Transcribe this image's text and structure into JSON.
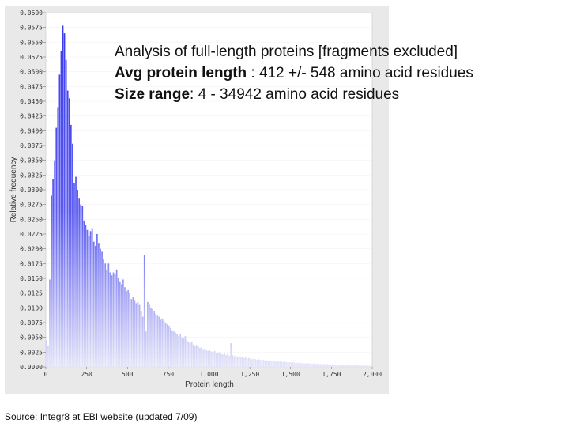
{
  "annotation": {
    "line1": "Analysis of full-length proteins [fragments excluded]",
    "line2_label": "Avg protein length",
    "line2_value": " : 412 +/- 548 amino acid residues",
    "line3_label": "Size range",
    "line3_value": ": 4 - 34942 amino acid residues"
  },
  "source": "Source: Integr8 at EBI website (updated 7/09)",
  "colors": {
    "bar_top": "#3a3af0",
    "bar_bottom": "#e4e4f8",
    "panel_bg": "#e9e9e9",
    "plot_bg": "#ffffff"
  },
  "chart_data": {
    "type": "bar",
    "xlabel": "Protein length",
    "ylabel": "Relative frequency",
    "xlim": [
      0,
      2000
    ],
    "ylim": [
      0,
      0.06
    ],
    "bin_width": 10,
    "x_ticks": [
      {
        "value": 0,
        "label": "0"
      },
      {
        "value": 250,
        "label": "250"
      },
      {
        "value": 500,
        "label": "500"
      },
      {
        "value": 750,
        "label": "750"
      },
      {
        "value": 1000,
        "label": "1,000"
      },
      {
        "value": 1250,
        "label": "1,250"
      },
      {
        "value": 1500,
        "label": "1,500"
      },
      {
        "value": 1750,
        "label": "1,750"
      },
      {
        "value": 2000,
        "label": "2,000"
      }
    ],
    "y_ticks": [
      {
        "value": 0.0,
        "label": "0.0000"
      },
      {
        "value": 0.0025,
        "label": "0.0025"
      },
      {
        "value": 0.005,
        "label": "0.0050"
      },
      {
        "value": 0.0075,
        "label": "0.0075"
      },
      {
        "value": 0.01,
        "label": "0.0100"
      },
      {
        "value": 0.0125,
        "label": "0.0125"
      },
      {
        "value": 0.015,
        "label": "0.0150"
      },
      {
        "value": 0.0175,
        "label": "0.0175"
      },
      {
        "value": 0.02,
        "label": "0.0200"
      },
      {
        "value": 0.0225,
        "label": "0.0225"
      },
      {
        "value": 0.025,
        "label": "0.0250"
      },
      {
        "value": 0.0275,
        "label": "0.0275"
      },
      {
        "value": 0.03,
        "label": "0.0300"
      },
      {
        "value": 0.0325,
        "label": "0.0325"
      },
      {
        "value": 0.035,
        "label": "0.0350"
      },
      {
        "value": 0.0375,
        "label": "0.0375"
      },
      {
        "value": 0.04,
        "label": "0.0400"
      },
      {
        "value": 0.0425,
        "label": "0.0425"
      },
      {
        "value": 0.045,
        "label": "0.0450"
      },
      {
        "value": 0.0475,
        "label": "0.0475"
      },
      {
        "value": 0.05,
        "label": "0.0500"
      },
      {
        "value": 0.0525,
        "label": "0.0525"
      },
      {
        "value": 0.055,
        "label": "0.0550"
      },
      {
        "value": 0.0575,
        "label": "0.0575"
      },
      {
        "value": 0.06,
        "label": "0.0600"
      }
    ],
    "bins_x": [
      0,
      10,
      20,
      30,
      40,
      50,
      60,
      70,
      80,
      90,
      100,
      110,
      120,
      130,
      140,
      150,
      160,
      170,
      180,
      190,
      200,
      210,
      220,
      230,
      240,
      250,
      260,
      270,
      280,
      290,
      300,
      310,
      320,
      330,
      340,
      350,
      360,
      370,
      380,
      390,
      400,
      410,
      420,
      430,
      440,
      450,
      460,
      470,
      480,
      490,
      500,
      510,
      520,
      530,
      540,
      550,
      560,
      570,
      580,
      590,
      600,
      610,
      620,
      630,
      640,
      650,
      660,
      670,
      680,
      690,
      700,
      710,
      720,
      730,
      740,
      750,
      760,
      770,
      780,
      790,
      800,
      810,
      820,
      830,
      840,
      850,
      860,
      870,
      880,
      890,
      900,
      910,
      920,
      930,
      940,
      950,
      960,
      970,
      980,
      990,
      1000,
      1010,
      1020,
      1030,
      1040,
      1050,
      1060,
      1070,
      1080,
      1090,
      1100,
      1110,
      1120,
      1130,
      1140,
      1150,
      1160,
      1170,
      1180,
      1190,
      1200,
      1210,
      1220,
      1230,
      1240,
      1250,
      1260,
      1270,
      1280,
      1290,
      1300,
      1310,
      1320,
      1330,
      1340,
      1350,
      1360,
      1370,
      1380,
      1390,
      1400,
      1410,
      1420,
      1430,
      1440,
      1450,
      1460,
      1470,
      1480,
      1490,
      1500,
      1510,
      1520,
      1530,
      1540,
      1550,
      1560,
      1570,
      1580,
      1590,
      1600,
      1610,
      1620,
      1630,
      1640,
      1650,
      1660,
      1670,
      1680,
      1690,
      1700,
      1710,
      1720,
      1730,
      1740,
      1750,
      1760,
      1770,
      1780,
      1790,
      1800,
      1810,
      1820,
      1830,
      1840,
      1850,
      1860,
      1870,
      1880,
      1890,
      1900,
      1910,
      1920,
      1930,
      1940,
      1950,
      1960,
      1970,
      1980,
      1990
    ],
    "values": [
      0.0045,
      0.0035,
      0.0148,
      0.029,
      0.0318,
      0.035,
      0.0405,
      0.044,
      0.0495,
      0.0535,
      0.0578,
      0.0565,
      0.052,
      0.0468,
      0.0455,
      0.041,
      0.0378,
      0.0312,
      0.0322,
      0.03,
      0.0285,
      0.0275,
      0.0272,
      0.0248,
      0.024,
      0.0232,
      0.0222,
      0.023,
      0.0235,
      0.0212,
      0.0205,
      0.0225,
      0.021,
      0.02,
      0.0195,
      0.0182,
      0.0175,
      0.0165,
      0.0175,
      0.016,
      0.0155,
      0.016,
      0.0158,
      0.0165,
      0.015,
      0.0145,
      0.014,
      0.0148,
      0.0135,
      0.0128,
      0.013,
      0.0125,
      0.0115,
      0.0118,
      0.0112,
      0.0108,
      0.011,
      0.0105,
      0.0095,
      0.0085,
      0.019,
      0.006,
      0.011,
      0.0105,
      0.01,
      0.0098,
      0.0095,
      0.009,
      0.0088,
      0.0085,
      0.008,
      0.0082,
      0.0078,
      0.0075,
      0.0072,
      0.007,
      0.0066,
      0.0062,
      0.006,
      0.0058,
      0.0055,
      0.0052,
      0.0055,
      0.005,
      0.0048,
      0.0052,
      0.0045,
      0.0042,
      0.004,
      0.0042,
      0.0038,
      0.0035,
      0.0037,
      0.0034,
      0.0032,
      0.0033,
      0.003,
      0.0031,
      0.0029,
      0.0027,
      0.0028,
      0.0026,
      0.0025,
      0.0027,
      0.0024,
      0.0023,
      0.0025,
      0.0022,
      0.0021,
      0.0023,
      0.002,
      0.0022,
      0.0019,
      0.004,
      0.002,
      0.0018,
      0.0019,
      0.0017,
      0.0018,
      0.0016,
      0.0017,
      0.0015,
      0.0016,
      0.0014,
      0.0015,
      0.0014,
      0.0013,
      0.0014,
      0.0013,
      0.0012,
      0.0013,
      0.0012,
      0.0011,
      0.0012,
      0.0011,
      0.0011,
      0.001,
      0.0011,
      0.001,
      0.001,
      0.0009,
      0.001,
      0.0009,
      0.0009,
      0.0009,
      0.0008,
      0.0009,
      0.0008,
      0.0008,
      0.0008,
      0.0007,
      0.0008,
      0.0007,
      0.0007,
      0.0007,
      0.0007,
      0.0006,
      0.0007,
      0.0006,
      0.0006,
      0.0006,
      0.0006,
      0.0006,
      0.0005,
      0.0006,
      0.0005,
      0.0005,
      0.0005,
      0.0005,
      0.0005,
      0.0005,
      0.0004,
      0.0005,
      0.0004,
      0.0004,
      0.0004,
      0.0004,
      0.0004,
      0.0004,
      0.0004,
      0.0003,
      0.0004,
      0.0003,
      0.0003,
      0.0003,
      0.0003,
      0.0003,
      0.0003,
      0.0003,
      0.0003,
      0.0003,
      0.0003,
      0.0002,
      0.0003,
      0.0002,
      0.0002,
      0.0002,
      0.0002,
      0.0002,
      0.0002,
      0.0002,
      0.0002,
      0.0002,
      0.0002,
      0.0002
    ]
  }
}
